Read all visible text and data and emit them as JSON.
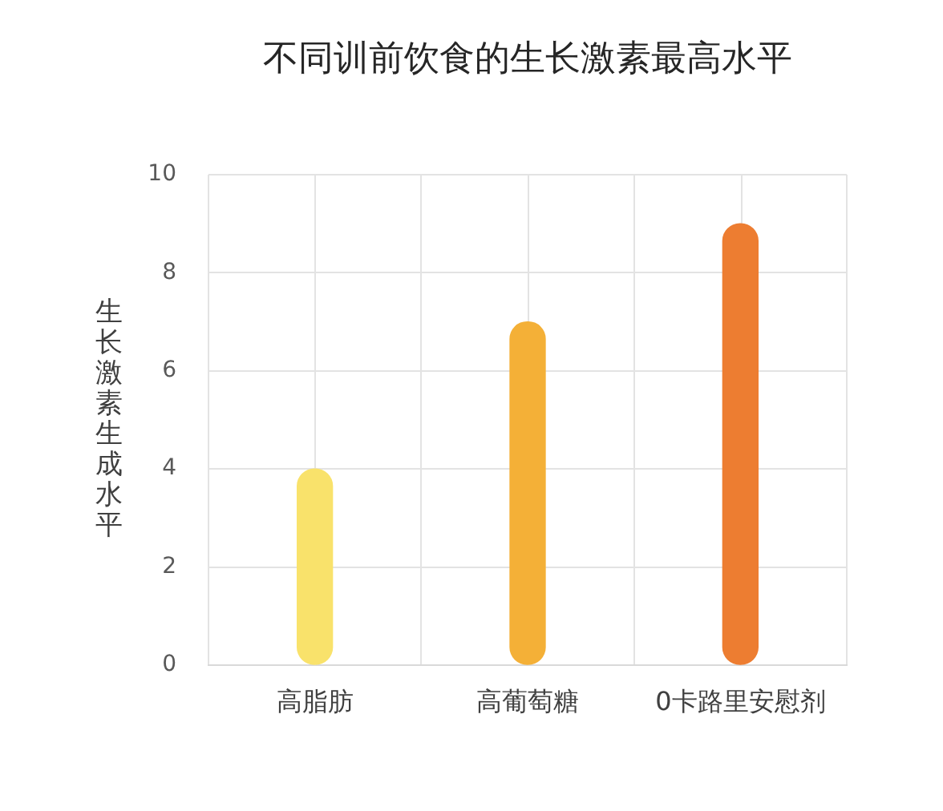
{
  "chart_data": {
    "type": "bar",
    "title": "不同训前饮食的生长激素最高水平",
    "ylabel": "生长激素生成水平",
    "categories": [
      "高脂肪",
      "高葡萄糖",
      "0卡路里安慰剂"
    ],
    "values": [
      4,
      7,
      9
    ],
    "colors": [
      "#f9e26b",
      "#f4b037",
      "#ed7d31"
    ],
    "ylim": [
      0,
      10
    ],
    "yticks": [
      0,
      2,
      4,
      6,
      8,
      10
    ],
    "grid": true
  }
}
